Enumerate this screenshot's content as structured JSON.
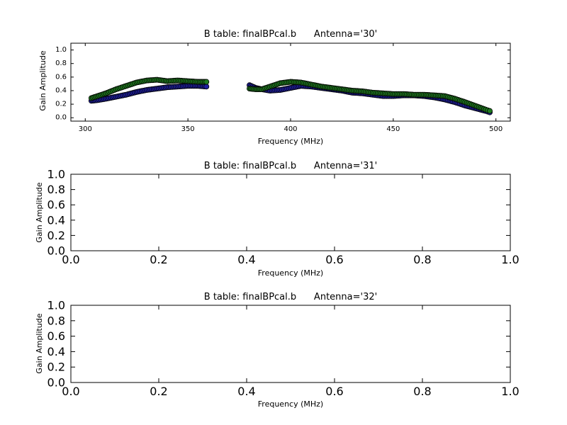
{
  "figure": {
    "background": "#ffffff"
  },
  "chart_data": [
    {
      "type": "scatter",
      "title": "B table: finalBPcal.b      Antenna='30'",
      "xlabel": "Frequency (MHz)",
      "ylabel": "Gain Amplitude",
      "xlim": [
        293,
        507
      ],
      "ylim": [
        -0.05,
        1.1
      ],
      "xticks": [
        "300",
        "350",
        "400",
        "450",
        "500"
      ],
      "yticks": [
        "0.0",
        "0.2",
        "0.4",
        "0.6",
        "0.8",
        "1.0"
      ],
      "grid": false,
      "series": [
        {
          "color": "#1f1fa0",
          "x": [
            303,
            306,
            310,
            315,
            320,
            325,
            330,
            335,
            340,
            345,
            350,
            355,
            359,
            380,
            383,
            386,
            390,
            395,
            400,
            405,
            410,
            415,
            420,
            425,
            430,
            435,
            440,
            445,
            450,
            455,
            460,
            465,
            470,
            475,
            480,
            485,
            495,
            497
          ],
          "y": [
            0.25,
            0.26,
            0.28,
            0.31,
            0.34,
            0.38,
            0.41,
            0.43,
            0.45,
            0.46,
            0.47,
            0.47,
            0.46,
            0.48,
            0.44,
            0.42,
            0.4,
            0.41,
            0.44,
            0.47,
            0.46,
            0.44,
            0.42,
            0.4,
            0.37,
            0.36,
            0.34,
            0.32,
            0.32,
            0.33,
            0.33,
            0.32,
            0.3,
            0.27,
            0.23,
            0.18,
            0.1,
            0.08
          ]
        },
        {
          "color": "#1f7a1f",
          "x": [
            303,
            306,
            310,
            315,
            320,
            325,
            330,
            335,
            340,
            345,
            350,
            355,
            359,
            380,
            383,
            386,
            390,
            395,
            400,
            405,
            410,
            415,
            420,
            425,
            430,
            435,
            440,
            445,
            450,
            455,
            460,
            465,
            470,
            475,
            480,
            485,
            495,
            497
          ],
          "y": [
            0.29,
            0.32,
            0.36,
            0.42,
            0.47,
            0.52,
            0.55,
            0.56,
            0.54,
            0.55,
            0.54,
            0.53,
            0.53,
            0.43,
            0.42,
            0.42,
            0.46,
            0.51,
            0.53,
            0.52,
            0.49,
            0.46,
            0.44,
            0.42,
            0.4,
            0.39,
            0.37,
            0.36,
            0.35,
            0.35,
            0.34,
            0.34,
            0.33,
            0.32,
            0.28,
            0.23,
            0.12,
            0.1
          ]
        }
      ]
    },
    {
      "type": "scatter",
      "title": "B table: finalBPcal.b      Antenna='31'",
      "xlabel": "Frequency (MHz)",
      "ylabel": "Gain Amplitude",
      "xlim": [
        0,
        1
      ],
      "ylim": [
        0,
        1
      ],
      "xticks": [
        "0.0",
        "0.2",
        "0.4",
        "0.6",
        "0.8",
        "1.0"
      ],
      "yticks": [
        "0.0",
        "0.2",
        "0.4",
        "0.6",
        "0.8",
        "1.0"
      ],
      "grid": false,
      "series": []
    },
    {
      "type": "scatter",
      "title": "B table: finalBPcal.b      Antenna='32'",
      "xlabel": "Frequency (MHz)",
      "ylabel": "Gain Amplitude",
      "xlim": [
        0,
        1
      ],
      "ylim": [
        0,
        1
      ],
      "xticks": [
        "0.0",
        "0.2",
        "0.4",
        "0.6",
        "0.8",
        "1.0"
      ],
      "yticks": [
        "0.0",
        "0.2",
        "0.4",
        "0.6",
        "0.8",
        "1.0"
      ],
      "grid": false,
      "series": []
    }
  ]
}
